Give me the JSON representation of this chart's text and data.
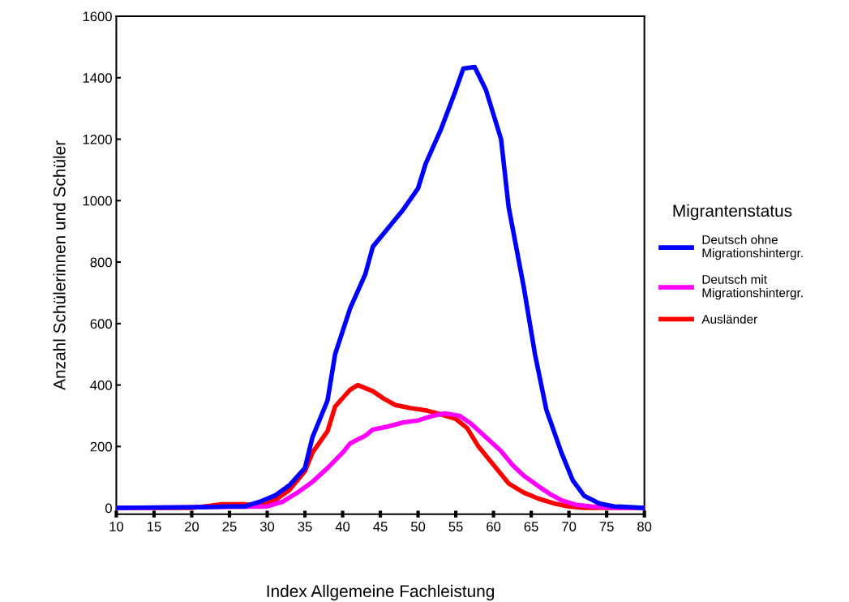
{
  "chart_data": {
    "type": "line",
    "xlabel": "Index Allgemeine Fachleistung",
    "ylabel": "Anzahl Schülerinnen und Schüler",
    "legend_title": "Migrantenstatus",
    "xlim": [
      10,
      80
    ],
    "xticks": [
      10,
      15,
      20,
      25,
      30,
      35,
      40,
      45,
      50,
      55,
      60,
      65,
      70,
      75,
      80
    ],
    "ylim": [
      -20,
      1600
    ],
    "yticks": [
      0,
      200,
      400,
      600,
      800,
      1000,
      1200,
      1400,
      1600
    ],
    "grid": false,
    "legend": "right",
    "marker": "none",
    "line_style": "solid",
    "series": [
      {
        "name": "Deutsch ohne Migrationshintergr.",
        "color": "#0000ff",
        "x": [
          10,
          20,
          25,
          27,
          29,
          31,
          33,
          35,
          36,
          38,
          39,
          41,
          43,
          44,
          46,
          48,
          50,
          51,
          53,
          55,
          56,
          57.5,
          59,
          61,
          62,
          64,
          65.5,
          67,
          69,
          70.5,
          72,
          74,
          76,
          78,
          80
        ],
        "values": [
          0,
          2,
          5,
          5,
          20,
          40,
          75,
          130,
          230,
          350,
          500,
          650,
          760,
          850,
          910,
          970,
          1040,
          1120,
          1230,
          1360,
          1430,
          1435,
          1360,
          1200,
          980,
          720,
          500,
          320,
          180,
          90,
          40,
          15,
          5,
          3,
          0
        ]
      },
      {
        "name": "Deutsch mit Migrationshintergr.",
        "color": "#ff00ff",
        "x": [
          10,
          30,
          32,
          34,
          36,
          38,
          40,
          41,
          43,
          44,
          46,
          48,
          50,
          52,
          53.5,
          55.5,
          57,
          59,
          61,
          62.5,
          64,
          66,
          67.5,
          69,
          71,
          73,
          76,
          80
        ],
        "values": [
          0,
          5,
          20,
          50,
          85,
          130,
          180,
          210,
          235,
          255,
          265,
          278,
          285,
          300,
          308,
          300,
          275,
          230,
          185,
          140,
          105,
          70,
          45,
          25,
          10,
          5,
          0,
          0
        ]
      },
      {
        "name": "Ausländer",
        "color": "#ff0000",
        "x": [
          10,
          20,
          24,
          27,
          29,
          31,
          33,
          35,
          36,
          38,
          39,
          41,
          42,
          44,
          45.5,
          47,
          49,
          51,
          53,
          55,
          56.5,
          58,
          60,
          62,
          64,
          66,
          68,
          70,
          72,
          80
        ],
        "values": [
          0,
          0,
          12,
          12,
          5,
          25,
          60,
          120,
          180,
          250,
          330,
          385,
          400,
          380,
          355,
          335,
          325,
          318,
          305,
          290,
          260,
          200,
          140,
          80,
          50,
          30,
          15,
          5,
          0,
          0
        ]
      }
    ]
  }
}
